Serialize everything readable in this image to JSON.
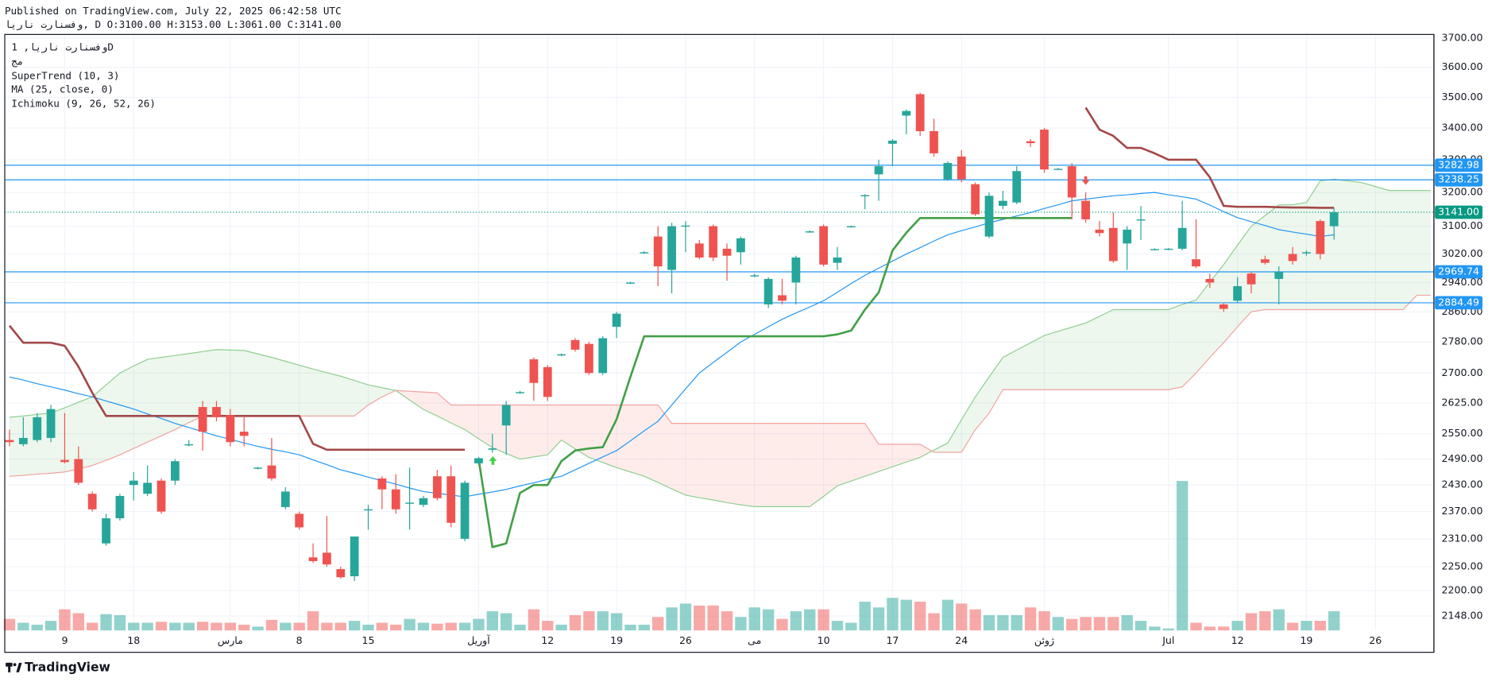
{
  "header": {
    "published": "Published on TradingView.com, July 22, 2025 06:42:58 UTC",
    "symbol_line": "وفسنارت ناریا, D O:3100.00 H:3153.00 L:3061.00 C:3141.00"
  },
  "legend": [
    "وفسنارت ناریا, 1D",
    "مج",
    "SuperTrend (10, 3)",
    "MA (25, close, 0)",
    "Ichimoku (9, 26, 52, 26)"
  ],
  "footer": {
    "logo": "TradingView"
  },
  "chart_data": {
    "type": "candlestick",
    "log_scale": true,
    "grid": true,
    "up_color": "#26a69a",
    "down_color": "#ef5350",
    "categories": [
      null,
      null,
      null,
      null,
      "9",
      null,
      null,
      null,
      null,
      "18",
      null,
      null,
      null,
      null,
      null,
      null,
      "مارس",
      null,
      null,
      null,
      null,
      "8",
      null,
      null,
      null,
      null,
      "15",
      null,
      null,
      null,
      null,
      null,
      null,
      null,
      "آوریل",
      null,
      null,
      null,
      null,
      "12",
      null,
      null,
      null,
      null,
      "19",
      null,
      null,
      null,
      null,
      "26",
      null,
      null,
      null,
      null,
      "می",
      null,
      null,
      null,
      null,
      "10",
      null,
      null,
      null,
      null,
      "17",
      null,
      null,
      null,
      null,
      "24",
      null,
      null,
      null,
      null,
      null,
      "ژوئن",
      null,
      null,
      null,
      null,
      null,
      null,
      null,
      null,
      "Jul",
      null,
      null,
      null,
      null,
      "12",
      null,
      null,
      null,
      null,
      "19",
      null,
      null,
      null,
      null,
      "26",
      null,
      null,
      null,
      null
    ],
    "open": [
      2535,
      2525,
      2535,
      2540,
      2488,
      2490,
      2410,
      2300,
      2355,
      2430,
      2410,
      2440,
      2440,
      2525,
      2615,
      2615,
      2595,
      2555,
      2468,
      2475,
      2380,
      2365,
      2270,
      2280,
      2245,
      2230,
      2375,
      2445,
      2420,
      2390,
      2385,
      2450,
      2450,
      2310,
      2480,
      2512,
      2570,
      2650,
      2735,
      2715,
      2745,
      2785,
      2775,
      2700,
      2820,
      2938,
      3022,
      3070,
      2975,
      3100,
      3050,
      3100,
      3035,
      3025,
      2958,
      2880,
      2905,
      2940,
      3083,
      3100,
      2995,
      3098,
      3190,
      3255,
      3350,
      3440,
      3510,
      3390,
      3240,
      3310,
      3225,
      3070,
      3160,
      3170,
      3358,
      3395,
      3270,
      3280,
      3175,
      3090,
      3095,
      3050,
      3118,
      3032,
      3033,
      3035,
      3005,
      2950,
      2880,
      2890,
      2965,
      3005,
      2950,
      3020,
      3022,
      3115,
      3100,
      null,
      null,
      null,
      null,
      null,
      null,
      null
    ],
    "high": [
      2560,
      2590,
      2600,
      2620,
      2600,
      2520,
      2415,
      2365,
      2410,
      2460,
      2475,
      2445,
      2490,
      2535,
      2630,
      2630,
      2610,
      2590,
      2472,
      2540,
      2425,
      2370,
      2300,
      2360,
      2250,
      2315,
      2385,
      2450,
      2455,
      2470,
      2405,
      2465,
      2475,
      2440,
      2495,
      2550,
      2630,
      2655,
      2740,
      2720,
      2750,
      2790,
      2780,
      2795,
      2860,
      2942,
      3028,
      3100,
      3110,
      3115,
      3060,
      3105,
      3050,
      3070,
      2965,
      2955,
      2950,
      3015,
      3088,
      3105,
      3040,
      3102,
      3195,
      3300,
      3365,
      3460,
      3515,
      3430,
      3295,
      3330,
      3230,
      3200,
      3205,
      3280,
      3365,
      3400,
      3275,
      3290,
      3200,
      3115,
      3140,
      3100,
      3160,
      3036,
      3037,
      3175,
      3120,
      2965,
      2885,
      2955,
      2970,
      3015,
      2985,
      3040,
      3030,
      3120,
      3153,
      null,
      null,
      null,
      null,
      null,
      null,
      null
    ],
    "low": [
      2520,
      2520,
      2530,
      2530,
      2480,
      2430,
      2370,
      2295,
      2350,
      2395,
      2405,
      2365,
      2430,
      2520,
      2510,
      2580,
      2520,
      2520,
      2466,
      2440,
      2375,
      2330,
      2258,
      2250,
      2225,
      2220,
      2330,
      2375,
      2365,
      2330,
      2380,
      2395,
      2335,
      2305,
      2478,
      2505,
      2500,
      2648,
      2630,
      2630,
      2743,
      2755,
      2695,
      2695,
      2790,
      2936,
      3020,
      2930,
      2910,
      3025,
      3005,
      3000,
      2945,
      2990,
      2955,
      2870,
      2880,
      2880,
      3081,
      2985,
      2975,
      3096,
      3150,
      3175,
      3280,
      3380,
      3375,
      3310,
      3235,
      3230,
      3130,
      3065,
      3150,
      3165,
      3340,
      3260,
      3268,
      3120,
      3110,
      3070,
      2995,
      2975,
      3060,
      3030,
      3031,
      3030,
      2980,
      2925,
      2860,
      2885,
      2910,
      2990,
      2880,
      2990,
      3015,
      3005,
      3061,
      null,
      null,
      null,
      null,
      null,
      null,
      null
    ],
    "close": [
      2530,
      2540,
      2590,
      2610,
      2483,
      2435,
      2375,
      2355,
      2405,
      2440,
      2435,
      2370,
      2485,
      2525,
      2555,
      2590,
      2530,
      2545,
      2470,
      2445,
      2415,
      2335,
      2262,
      2255,
      2228,
      2315,
      2375,
      2420,
      2375,
      2390,
      2400,
      2400,
      2345,
      2435,
      2492,
      2515,
      2620,
      2652,
      2675,
      2640,
      2748,
      2760,
      2700,
      2790,
      2855,
      2940,
      3025,
      2985,
      3100,
      3102,
      3010,
      3010,
      3015,
      3065,
      2960,
      2950,
      2890,
      3010,
      3085,
      2990,
      3010,
      3100,
      3192,
      3280,
      3360,
      3455,
      3390,
      3320,
      3290,
      3240,
      3135,
      3190,
      3175,
      3265,
      3352,
      3270,
      3272,
      3185,
      3120,
      3080,
      3000,
      3090,
      3120,
      3034,
      3035,
      3095,
      2985,
      2940,
      2868,
      2930,
      2935,
      2995,
      2970,
      3000,
      3025,
      3020,
      3141,
      null,
      null,
      null,
      null,
      null,
      null,
      null
    ],
    "volume": [
      12,
      8,
      6,
      10,
      22,
      18,
      8,
      17,
      16,
      8,
      8,
      9,
      8,
      8,
      9,
      8,
      8,
      6,
      4,
      11,
      8,
      8,
      20,
      8,
      8,
      10,
      6,
      8,
      6,
      12,
      8,
      7,
      8,
      8,
      12,
      20,
      18,
      6,
      22,
      10,
      6,
      16,
      20,
      20,
      18,
      6,
      6,
      14,
      24,
      28,
      26,
      26,
      20,
      14,
      24,
      22,
      12,
      20,
      22,
      22,
      10,
      8,
      30,
      24,
      34,
      32,
      30,
      18,
      32,
      28,
      22,
      16,
      16,
      16,
      24,
      20,
      14,
      12,
      14,
      14,
      14,
      16,
      10,
      4,
      2,
      156,
      8,
      4,
      4,
      10,
      18,
      20,
      22,
      8,
      10,
      10,
      20,
      null,
      null,
      null,
      null,
      null,
      null,
      null
    ],
    "ma": {
      "color": "#2196f3",
      "values": [
        2690,
        2682,
        2673,
        2665,
        2657,
        2648,
        2640,
        2630,
        2620,
        2610,
        2598,
        2587,
        2575,
        2565,
        2555,
        2545,
        2537,
        2528,
        2520,
        2513,
        2507,
        2500,
        2488,
        2477,
        2465,
        2457,
        2448,
        2440,
        2432,
        2423,
        2415,
        2411,
        2407,
        2403,
        2409,
        2414,
        2420,
        2428,
        2435,
        2443,
        2450,
        2465,
        2480,
        2495,
        2510,
        2533,
        2557,
        2580,
        2620,
        2660,
        2700,
        2727,
        2753,
        2780,
        2800,
        2820,
        2840,
        2857,
        2873,
        2890,
        2913,
        2937,
        2960,
        2980,
        3000,
        3020,
        3038,
        3057,
        3075,
        3087,
        3098,
        3110,
        3120,
        3130,
        3140,
        3152,
        3163,
        3175,
        3180,
        3185,
        3190,
        3193,
        3197,
        3200,
        3193,
        3187,
        3180,
        3162,
        3143,
        3125,
        3113,
        3102,
        3090,
        3083,
        3077,
        3070,
        3075,
        null,
        null,
        null,
        null,
        null,
        null,
        null
      ]
    },
    "supertrend_down": {
      "color": "#a34848",
      "values": [
        2823,
        2778,
        2778,
        2778,
        2770,
        2716,
        2650,
        2593,
        2593,
        2593,
        2593,
        2593,
        2593,
        2593,
        2593,
        2593,
        2593,
        2593,
        2593,
        2593,
        2593,
        2593,
        2526,
        2512,
        2512,
        2512,
        2512,
        2512,
        2512,
        2512,
        2512,
        2512,
        2512,
        2512,
        null,
        null,
        null,
        null,
        null,
        null,
        null,
        null,
        null,
        null,
        null,
        null,
        null,
        null,
        null,
        null,
        null,
        null,
        null,
        null,
        null,
        null,
        null,
        null,
        null,
        null,
        null,
        null,
        null,
        null,
        null,
        null,
        null,
        null,
        null,
        null,
        null,
        null,
        null,
        null,
        null,
        null,
        null,
        null,
        3466,
        3395,
        3375,
        3337,
        3337,
        3320,
        3300,
        3300,
        3300,
        3246,
        3160,
        3157,
        3157,
        3157,
        3156,
        3155,
        3155,
        3154,
        3154,
        null,
        null,
        null,
        null,
        null,
        null,
        null
      ]
    },
    "supertrend_up": {
      "color": "#43a047",
      "values": [
        null,
        null,
        null,
        null,
        null,
        null,
        null,
        null,
        null,
        null,
        null,
        null,
        null,
        null,
        null,
        null,
        null,
        null,
        null,
        null,
        null,
        null,
        null,
        null,
        null,
        null,
        null,
        null,
        null,
        null,
        null,
        null,
        null,
        null,
        2490,
        2292,
        2300,
        2412,
        2430,
        2430,
        2485,
        2510,
        2515,
        2518,
        2585,
        2690,
        2795,
        2795,
        2795,
        2795,
        2795,
        2795,
        2795,
        2795,
        2795,
        2795,
        2795,
        2795,
        2795,
        2795,
        2800,
        2810,
        2866,
        2913,
        3030,
        3081,
        3124,
        3124,
        3124,
        3124,
        3124,
        3124,
        3124,
        3124,
        3124,
        3124,
        3124,
        3124,
        null,
        null,
        null,
        null,
        null,
        null,
        null,
        null,
        null,
        null,
        null,
        null,
        null,
        null,
        null,
        null,
        null,
        null,
        null,
        null,
        null,
        null,
        null,
        null,
        null,
        null
      ]
    },
    "span_a": {
      "color": "#8fcf91",
      "values": [
        2590,
        2593,
        2597,
        2600,
        2613,
        2627,
        2640,
        2670,
        2700,
        2718,
        2735,
        2740,
        2745,
        2750,
        2755,
        2760,
        2759,
        2758,
        2749,
        2740,
        2730,
        2720,
        2710,
        2701,
        2692,
        2681,
        2670,
        2663,
        2656,
        2632,
        2609,
        2593,
        2576,
        2560,
        2538,
        2517,
        2503,
        2490,
        2495,
        2500,
        2535,
        2514,
        2494,
        2482,
        2470,
        2460,
        2450,
        2436,
        2421,
        2407,
        2401,
        2396,
        2390,
        2385,
        2381,
        2381,
        2381,
        2381,
        2381,
        2404,
        2428,
        2439,
        2450,
        2461,
        2472,
        2483,
        2494,
        2511,
        2528,
        2584,
        2640,
        2690,
        2740,
        2759,
        2778,
        2797,
        2808,
        2819,
        2830,
        2848,
        2866,
        2866,
        2866,
        2866,
        2866,
        2880,
        2892,
        2941,
        2990,
        3045,
        3100,
        3131,
        3163,
        3163,
        3170,
        3235,
        3240,
        3235,
        3230,
        3218,
        3206,
        3206,
        3206,
        3206
      ]
    },
    "span_b": {
      "color": "#f2a3a1",
      "values": [
        2450,
        2452,
        2455,
        2457,
        2460,
        2467,
        2475,
        2487,
        2500,
        2515,
        2530,
        2545,
        2560,
        2577,
        2593,
        2593,
        2593,
        2593,
        2593,
        2593,
        2593,
        2593,
        2593,
        2593,
        2593,
        2593,
        2620,
        2640,
        2656,
        2654,
        2652,
        2650,
        2620,
        2620,
        2620,
        2620,
        2620,
        2620,
        2620,
        2620,
        2620,
        2620,
        2620,
        2620,
        2620,
        2620,
        2620,
        2620,
        2575,
        2575,
        2575,
        2575,
        2575,
        2575,
        2575,
        2575,
        2575,
        2575,
        2575,
        2575,
        2575,
        2575,
        2575,
        2525,
        2525,
        2525,
        2525,
        2506,
        2506,
        2506,
        2560,
        2600,
        2658,
        2658,
        2658,
        2658,
        2658,
        2658,
        2658,
        2658,
        2658,
        2658,
        2658,
        2658,
        2658,
        2665,
        2700,
        2740,
        2778,
        2820,
        2860,
        2866,
        2866,
        2866,
        2866,
        2866,
        2866,
        2866,
        2866,
        2866,
        2866,
        2866,
        2905,
        2905
      ]
    },
    "cloud_up_color": "rgba(76,175,80,0.10)",
    "cloud_down_color": "rgba(244,67,54,0.10)",
    "levels_color": "#2196f3",
    "levels": [
      {
        "value": 3282.98,
        "label": "3282.98"
      },
      {
        "value": 3238.25,
        "label": "3238.25"
      },
      {
        "value": 2969.74,
        "label": "2969.74"
      },
      {
        "value": 2884.49,
        "label": "2884.49"
      }
    ],
    "last_price": {
      "value": 3141,
      "label": "3141.00"
    },
    "last_price_color": "#089981",
    "ylim": [
      2076,
      3713
    ],
    "yticks": [
      {
        "value": 3700,
        "label": "3700.00"
      },
      {
        "value": 3600,
        "label": "3600.00"
      },
      {
        "value": 3500,
        "label": "3500.00"
      },
      {
        "value": 3400,
        "label": "3400.00"
      },
      {
        "value": 3300,
        "label": "3300.00"
      },
      {
        "value": 3200,
        "label": "3200.00"
      },
      {
        "value": 3100,
        "label": "3100.00"
      },
      {
        "value": 3020,
        "label": "3020.00"
      },
      {
        "value": 2940,
        "label": "2940.00"
      },
      {
        "value": 2860,
        "label": "2860.00"
      },
      {
        "value": 2780,
        "label": "2780.00"
      },
      {
        "value": 2700,
        "label": "2700.00"
      },
      {
        "value": 2625,
        "label": "2625.00"
      },
      {
        "value": 2550,
        "label": "2550.00"
      },
      {
        "value": 2490,
        "label": "2490.00"
      },
      {
        "value": 2430,
        "label": "2430.00"
      },
      {
        "value": 2370,
        "label": "2370.00"
      },
      {
        "value": 2310,
        "label": "2310.00"
      },
      {
        "value": 2250,
        "label": "2250.00"
      },
      {
        "value": 2200,
        "label": "2200.00"
      },
      {
        "value": 2148,
        "label": "2148.00"
      }
    ]
  }
}
